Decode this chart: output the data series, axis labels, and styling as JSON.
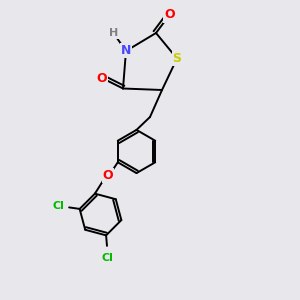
{
  "background_color": "#e8e8ec",
  "bond_lw": 1.4,
  "bond_color": "#000000",
  "colors": {
    "N": "#4848ff",
    "O": "#ff0000",
    "S": "#cccc00",
    "Cl": "#00bb00",
    "H": "#808080"
  },
  "font_size_atom": 9,
  "font_size_h": 8
}
